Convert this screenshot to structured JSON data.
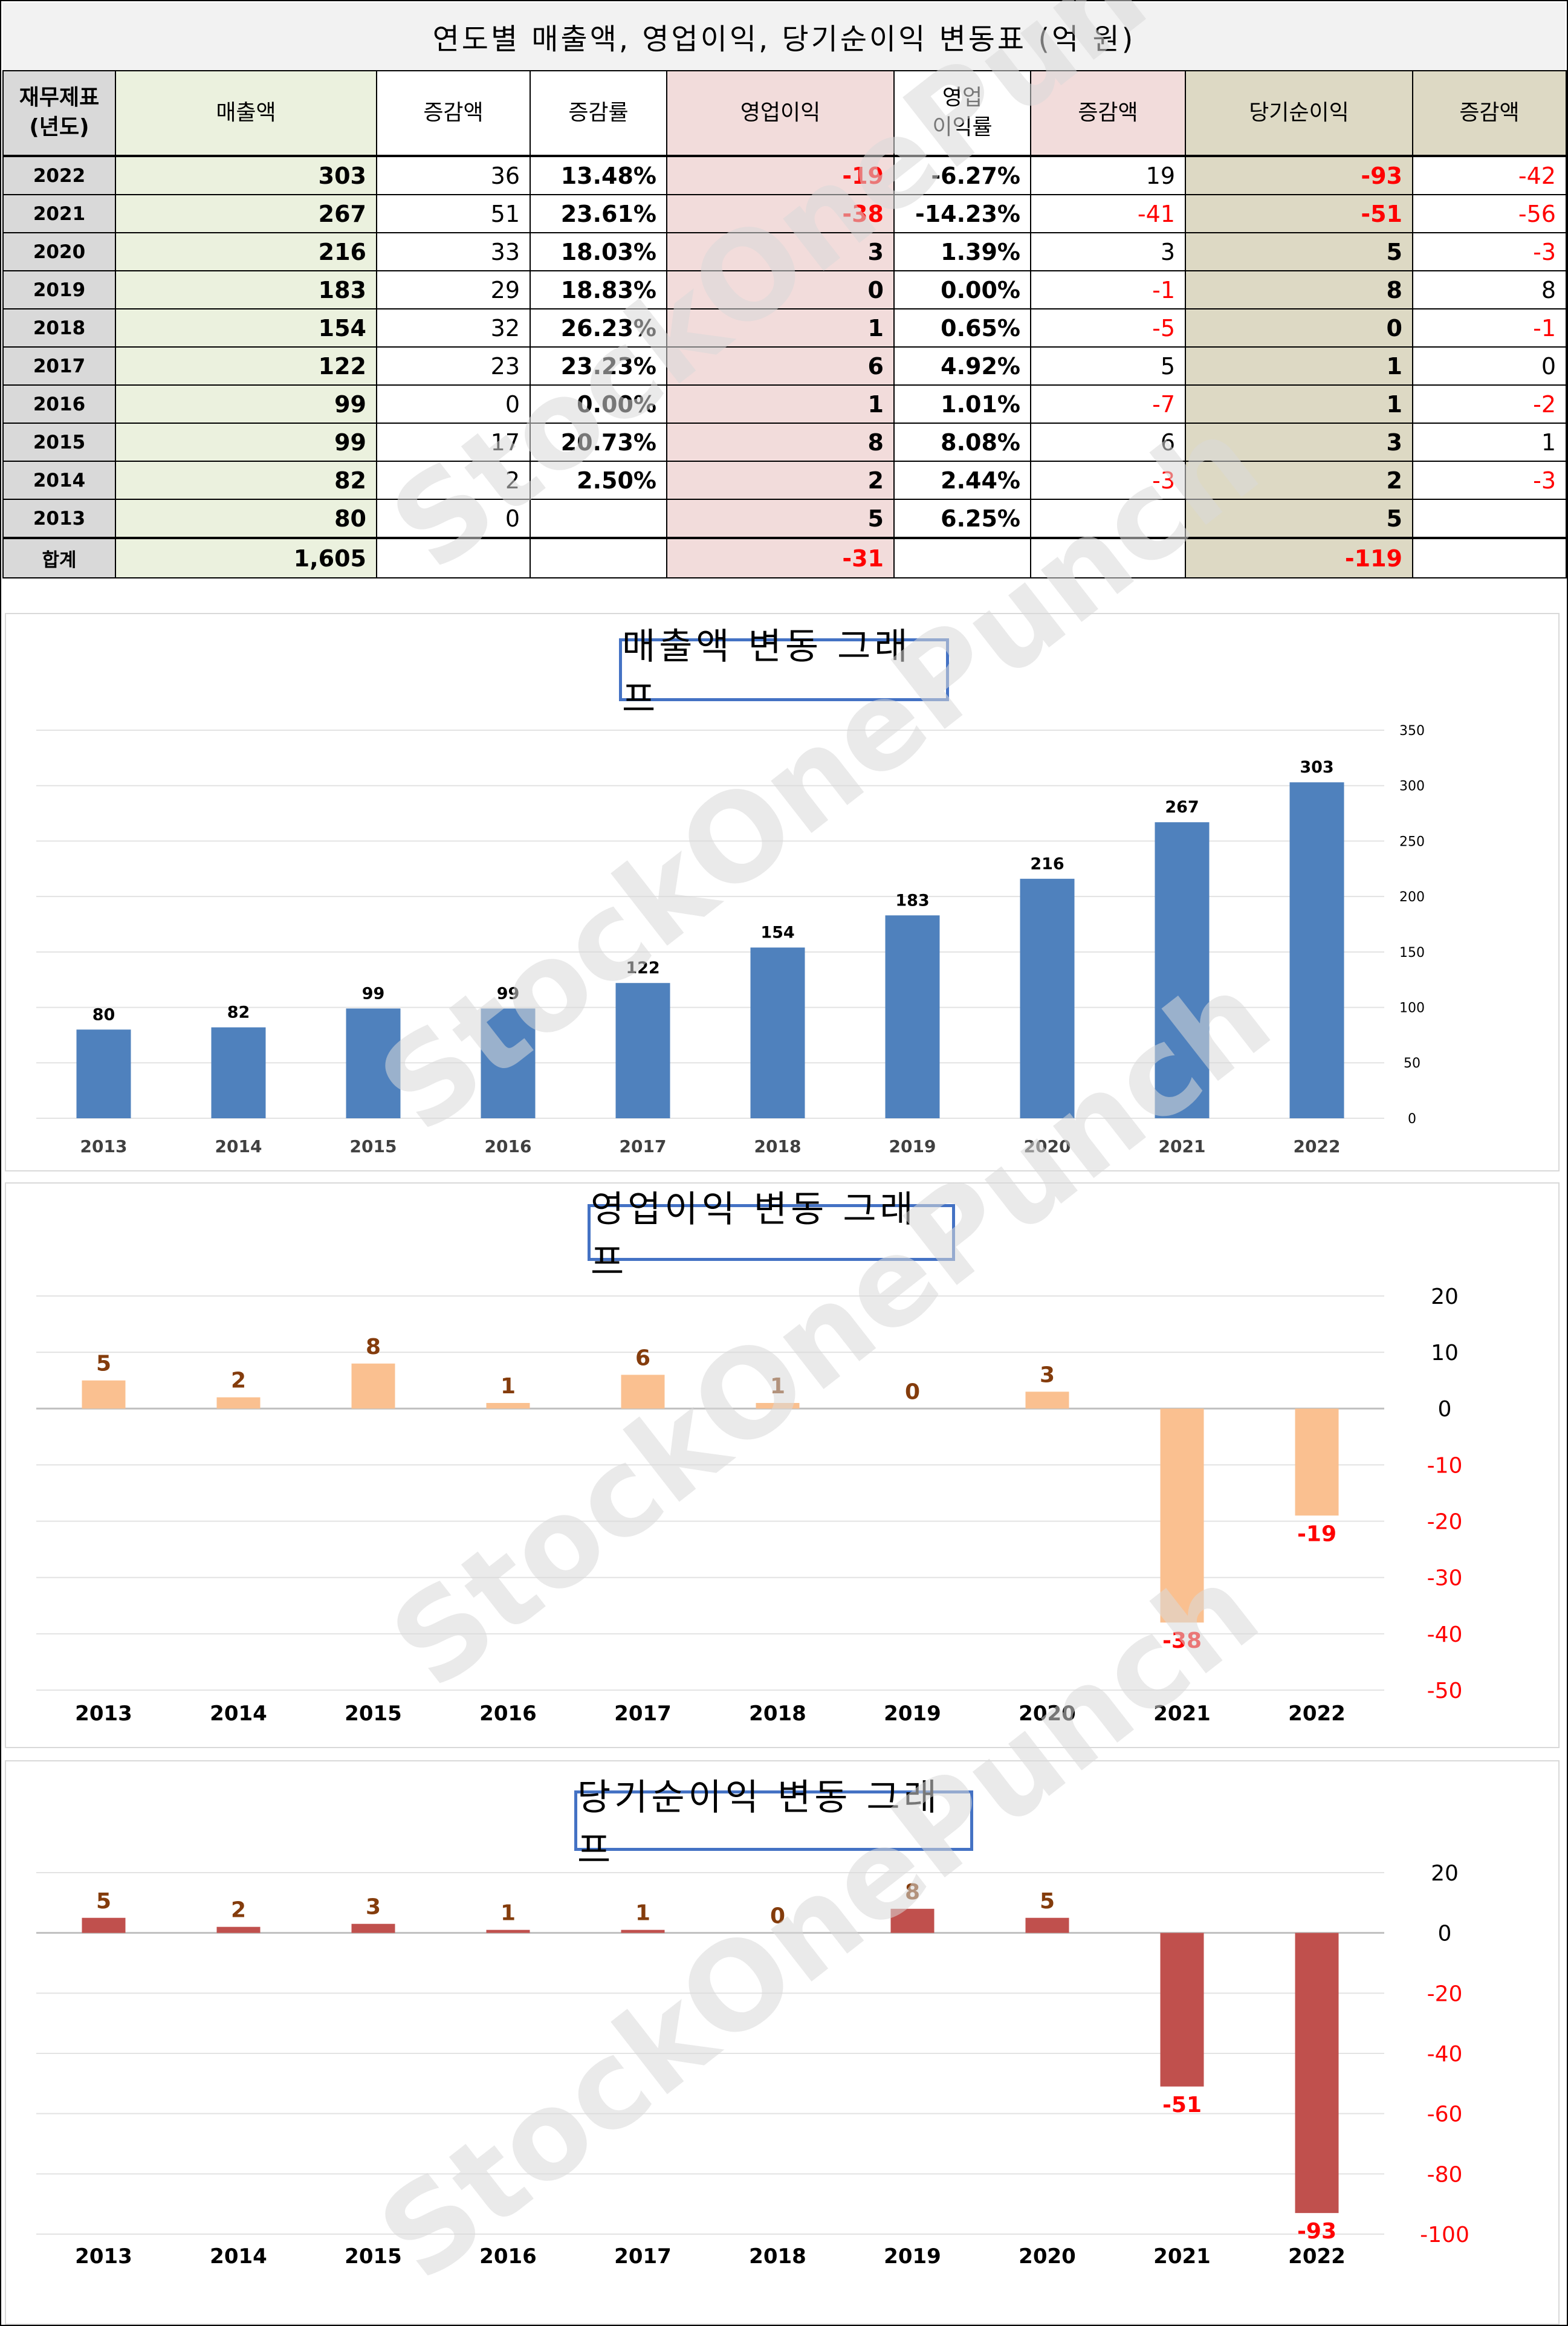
{
  "table": {
    "title": "연도별 매출액, 영업이익, 당기순이익 변동표  (억 원)",
    "headers": {
      "year": [
        "재무제표",
        "(년도)"
      ],
      "sales": "매출액",
      "sales_change": "증감액",
      "sales_rate": "증감률",
      "op_income": "영업이익",
      "op_margin": [
        "영업",
        "이익률"
      ],
      "op_change": "증감액",
      "net_income": "당기순이익",
      "net_change": "증감액"
    },
    "rows": [
      {
        "year": "2022",
        "sales": "303",
        "sales_change": "36",
        "sales_rate": "13.48%",
        "op_income": "-19",
        "op_margin": "-6.27%",
        "op_change": "19",
        "net_income": "-93",
        "net_change": "-42"
      },
      {
        "year": "2021",
        "sales": "267",
        "sales_change": "51",
        "sales_rate": "23.61%",
        "op_income": "-38",
        "op_margin": "-14.23%",
        "op_change": "-41",
        "net_income": "-51",
        "net_change": "-56"
      },
      {
        "year": "2020",
        "sales": "216",
        "sales_change": "33",
        "sales_rate": "18.03%",
        "op_income": "3",
        "op_margin": "1.39%",
        "op_change": "3",
        "net_income": "5",
        "net_change": "-3"
      },
      {
        "year": "2019",
        "sales": "183",
        "sales_change": "29",
        "sales_rate": "18.83%",
        "op_income": "0",
        "op_margin": "0.00%",
        "op_change": "-1",
        "net_income": "8",
        "net_change": "8"
      },
      {
        "year": "2018",
        "sales": "154",
        "sales_change": "32",
        "sales_rate": "26.23%",
        "op_income": "1",
        "op_margin": "0.65%",
        "op_change": "-5",
        "net_income": "0",
        "net_change": "-1"
      },
      {
        "year": "2017",
        "sales": "122",
        "sales_change": "23",
        "sales_rate": "23.23%",
        "op_income": "6",
        "op_margin": "4.92%",
        "op_change": "5",
        "net_income": "1",
        "net_change": "0"
      },
      {
        "year": "2016",
        "sales": "99",
        "sales_change": "0",
        "sales_rate": "0.00%",
        "op_income": "1",
        "op_margin": "1.01%",
        "op_change": "-7",
        "net_income": "1",
        "net_change": "-2"
      },
      {
        "year": "2015",
        "sales": "99",
        "sales_change": "17",
        "sales_rate": "20.73%",
        "op_income": "8",
        "op_margin": "8.08%",
        "op_change": "6",
        "net_income": "3",
        "net_change": "1"
      },
      {
        "year": "2014",
        "sales": "82",
        "sales_change": "2",
        "sales_rate": "2.50%",
        "op_income": "2",
        "op_margin": "2.44%",
        "op_change": "-3",
        "net_income": "2",
        "net_change": "-3"
      },
      {
        "year": "2013",
        "sales": "80",
        "sales_change": "0",
        "sales_rate": "",
        "op_income": "5",
        "op_margin": "6.25%",
        "op_change": "",
        "net_income": "5",
        "net_change": ""
      }
    ],
    "total": {
      "label": "합계",
      "sales": "1,605",
      "op_income": "-31",
      "net_income": "-119"
    }
  },
  "colors": {
    "sales_col_bg": "#ebf1de",
    "op_col_bg": "#f2dcdb",
    "net_col_bg": "#ddd9c4",
    "year_col_bg": "#d9d9d9",
    "negative_text": "#ff0000",
    "sales_bar": "#4f81bd",
    "op_bar": "#fac090",
    "net_bar": "#c0504d",
    "label_brown": "#843c0c",
    "title_border": "#4472c4"
  },
  "watermark": "StockOnePunch",
  "chart_data": [
    {
      "type": "bar",
      "title": "매출액 변동 그래프",
      "categories": [
        "2013",
        "2014",
        "2015",
        "2016",
        "2017",
        "2018",
        "2019",
        "2020",
        "2021",
        "2022"
      ],
      "values": [
        80,
        82,
        99,
        99,
        122,
        154,
        183,
        216,
        267,
        303
      ],
      "ylim": [
        0,
        350
      ],
      "yticks": [
        0,
        50,
        100,
        150,
        200,
        250,
        300,
        350
      ],
      "y_axis_side": "right",
      "grid": true,
      "bar_color": "#4f81bd",
      "label_color": "#000000",
      "negative_tick_color": null
    },
    {
      "type": "bar",
      "title": "영업이익 변동 그래프",
      "categories": [
        "2013",
        "2014",
        "2015",
        "2016",
        "2017",
        "2018",
        "2019",
        "2020",
        "2021",
        "2022"
      ],
      "values": [
        5,
        2,
        8,
        1,
        6,
        1,
        0,
        3,
        -38,
        -19
      ],
      "ylim": [
        -50,
        20
      ],
      "yticks": [
        20,
        10,
        0,
        -10,
        -20,
        -30,
        -40,
        -50
      ],
      "y_axis_side": "right",
      "grid": true,
      "bar_color": "#fac090",
      "label_color": "#843c0c",
      "negative_tick_color": "#ff0000"
    },
    {
      "type": "bar",
      "title": "당기순이익 변동 그래프",
      "categories": [
        "2013",
        "2014",
        "2015",
        "2016",
        "2017",
        "2018",
        "2019",
        "2020",
        "2021",
        "2022"
      ],
      "values": [
        5,
        2,
        3,
        1,
        1,
        0,
        8,
        5,
        -51,
        -93
      ],
      "ylim": [
        -100,
        20
      ],
      "yticks": [
        20,
        0,
        -20,
        -40,
        -60,
        -80,
        -100
      ],
      "y_axis_side": "right",
      "grid": true,
      "bar_color": "#c0504d",
      "label_color": "#843c0c",
      "negative_tick_color": "#ff0000"
    }
  ]
}
